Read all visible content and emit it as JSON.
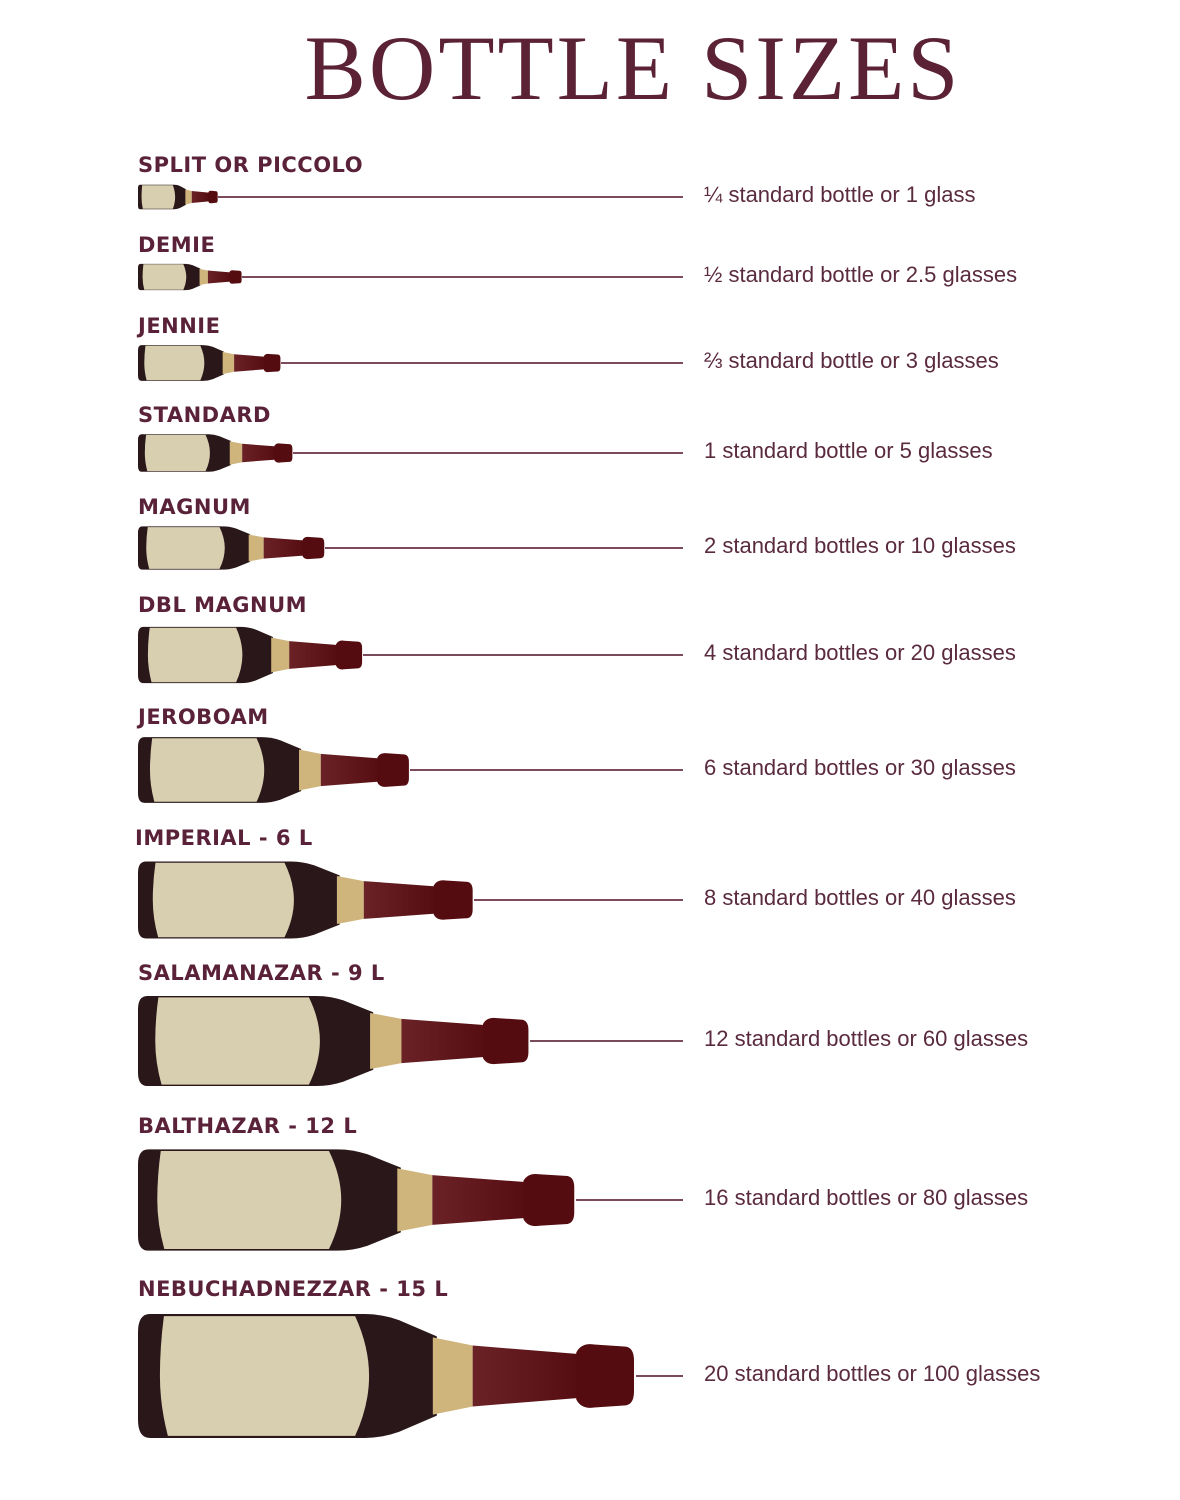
{
  "title": "BOTTLE SIZES",
  "colors": {
    "title": "#5b2236",
    "text": "#5a2a3e",
    "line": "#7b4a5c",
    "bottle_glass": "#2a1719",
    "label": "#d8cfb0",
    "foil_band": "#cfb47c",
    "neck_start": "#6a2226",
    "neck_end": "#540c10"
  },
  "bottles": [
    {
      "name": "SPLIT OR PICCOLO",
      "description": "¼ standard bottle or 1 glass"
    },
    {
      "name": "DEMIE",
      "description": "½ standard bottle or 2.5 glasses"
    },
    {
      "name": "JENNIE",
      "description": "⅔ standard bottle or 3 glasses"
    },
    {
      "name": "STANDARD",
      "description": "1 standard bottle or 5 glasses"
    },
    {
      "name": "MAGNUM",
      "description": "2 standard bottles or 10 glasses"
    },
    {
      "name": "DBL MAGNUM",
      "description": "4 standard bottles or 20 glasses"
    },
    {
      "name": "JEROBOAM",
      "description": "6 standard bottles or 30 glasses"
    },
    {
      "name": "IMPERIAL - 6 L",
      "description": "8 standard bottles or 40 glasses"
    },
    {
      "name": "SALAMANAZAR - 9 L",
      "description": "12 standard bottles or 60 glasses"
    },
    {
      "name": "BALTHAZAR - 12 L",
      "description": "16 standard bottles or 80 glasses"
    },
    {
      "name": "NEBUCHADNEZZAR - 15 L",
      "description": "20 standard bottles or 100 glasses"
    }
  ]
}
